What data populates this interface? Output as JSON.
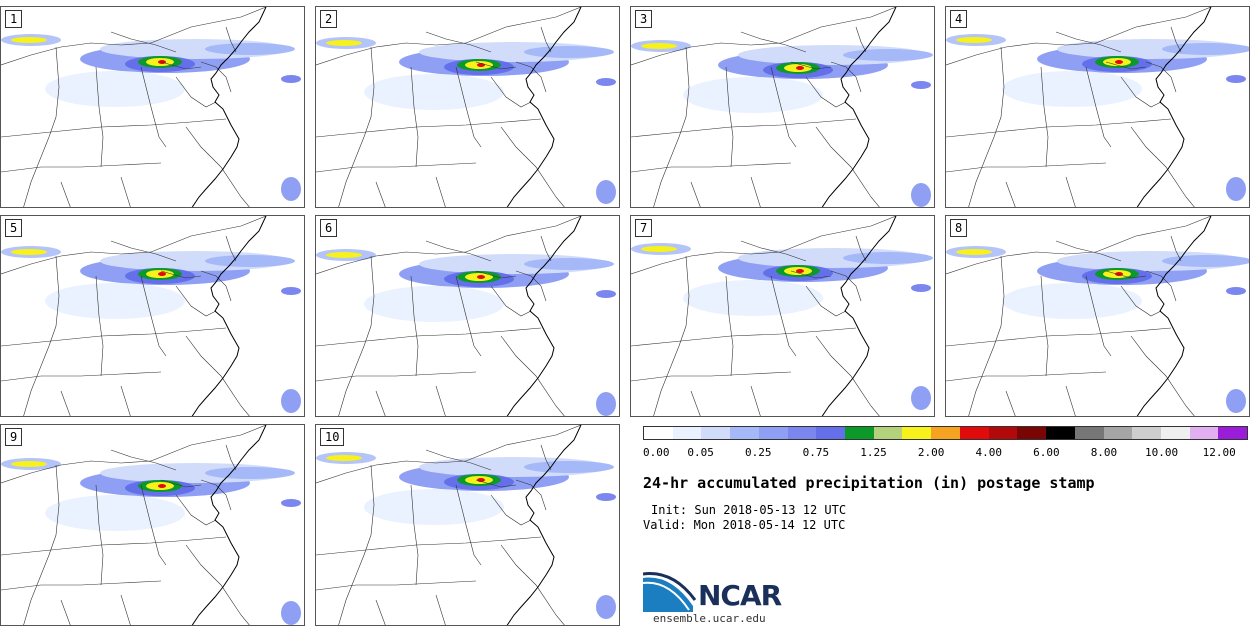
{
  "members": [
    "1",
    "2",
    "3",
    "4",
    "5",
    "6",
    "7",
    "8",
    "9",
    "10"
  ],
  "colorbar": {
    "colors": [
      "#ffffff",
      "#eaf2ff",
      "#d1dcfb",
      "#a5b8f7",
      "#8fa0f4",
      "#7b86ee",
      "#6470ea",
      "#0b9a2a",
      "#b4d17b",
      "#f7f21c",
      "#f6a321",
      "#e20b0b",
      "#b20a0a",
      "#790505",
      "#000000",
      "#777777",
      "#a5a5a5",
      "#cecece",
      "#efefef",
      "#e2b0f0",
      "#9a1ed9"
    ],
    "tick_labels": [
      "0.00",
      "0.05",
      "0.25",
      "0.75",
      "1.25",
      "2.00",
      "4.00",
      "6.00",
      "8.00",
      "10.00",
      "12.00"
    ]
  },
  "title": "24-hr accumulated precipitation (in) postage stamp",
  "init": "Init: Sun 2018-05-13 12 UTC",
  "valid": "Valid: Mon 2018-05-14 12 UTC",
  "logo": {
    "text": "NCAR",
    "site": "ensemble.ucar.edu"
  }
}
